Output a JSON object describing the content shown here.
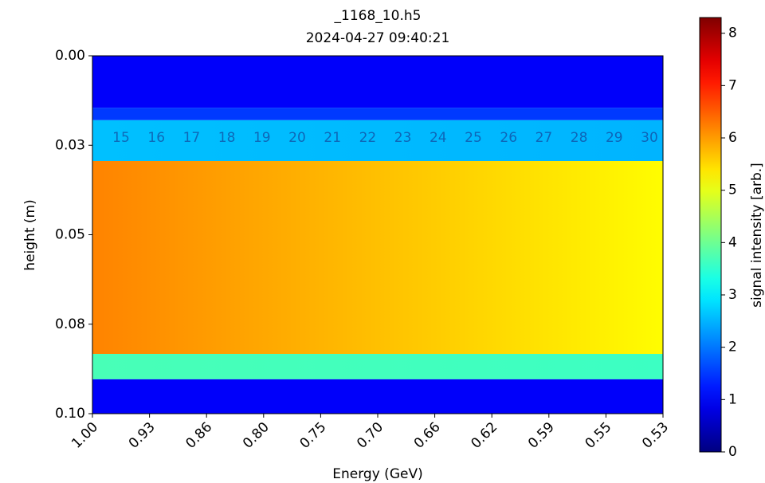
{
  "chart_data": {
    "type": "heatmap",
    "title": "_1168_10.h5",
    "subtitle": "2024-04-27 09:40:21",
    "x_label": "Energy (GeV)",
    "y_label": "height (m)",
    "colorbar_label": "signal intensity [arb.]",
    "colormap": "jet",
    "xtick_labels": [
      "1.00",
      "0.93",
      "0.86",
      "0.80",
      "0.75",
      "0.70",
      "0.66",
      "0.62",
      "0.59",
      "0.55",
      "0.53"
    ],
    "ylim": [
      0,
      0.1
    ],
    "y_inverted": true,
    "yticks": [
      {
        "value": 0,
        "label": "0.00"
      },
      {
        "value": 0.025,
        "label": "0.03"
      },
      0.05,
      {
        "value": 0.075,
        "label": "0.08"
      },
      {
        "value": 0.1,
        "label": "0.10"
      }
    ],
    "clim": [
      0,
      8.3
    ],
    "cticks": [
      0,
      1,
      2,
      3,
      4,
      5,
      6,
      7,
      8
    ],
    "annotations": [
      "15",
      "16",
      "17",
      "18",
      "19",
      "20",
      "21",
      "22",
      "23",
      "24",
      "25",
      "26",
      "27",
      "28",
      "29",
      "30"
    ],
    "bands": [
      {
        "y": [
          0,
          0.0145
        ],
        "intensity": [
          1.0,
          1.0
        ]
      },
      {
        "y": [
          0.0145,
          0.018
        ],
        "intensity": [
          1.5,
          1.5
        ]
      },
      {
        "y": [
          0.018,
          0.0294
        ],
        "intensity": [
          2.6,
          2.5
        ]
      },
      {
        "y": [
          0.0294,
          0.0833
        ],
        "intensity": [
          6.2,
          5.2
        ]
      },
      {
        "y": [
          0.0833,
          0.0904
        ],
        "intensity": [
          3.7,
          3.6
        ]
      },
      {
        "y": [
          0.0904,
          0.1
        ],
        "intensity": [
          1.0,
          1.0
        ]
      }
    ]
  }
}
